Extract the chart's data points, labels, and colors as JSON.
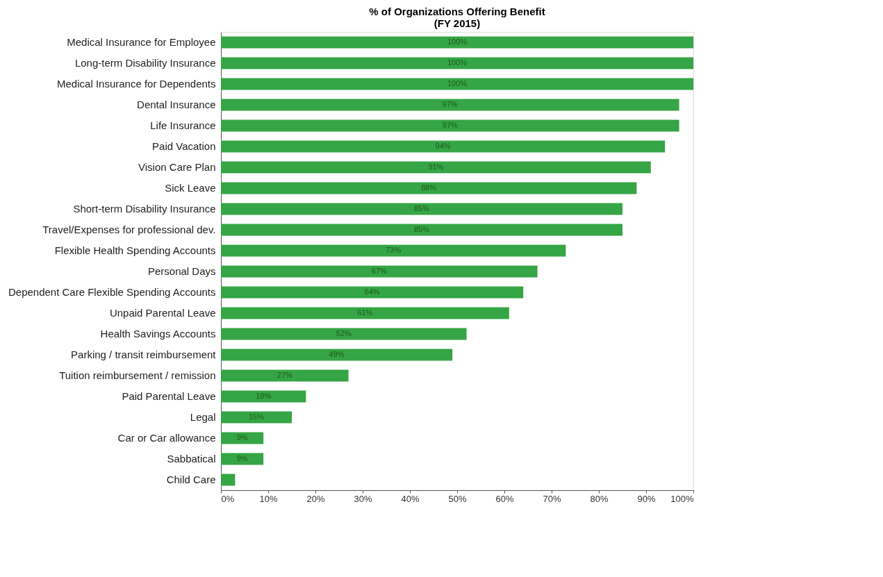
{
  "chart_data": {
    "type": "bar",
    "orientation": "horizontal",
    "title": "% of Organizations Offering Benefit\n(FY 2015)",
    "categories": [
      "Medical Insurance for Employee",
      "Long-term Disability Insurance",
      "Medical Insurance for Dependents",
      "Dental Insurance",
      "Life Insurance",
      "Paid Vacation",
      "Vision Care Plan",
      "Sick Leave",
      "Short-term Disability Insurance",
      "Travel/Expenses for professional dev.",
      "Flexible Health Spending Accounts",
      "Personal Days",
      "Dependent Care Flexible Spending Accounts",
      "Unpaid Parental Leave",
      "Health Savings Accounts",
      "Parking / transit reimbursement",
      "Tuition reimbursement / remission",
      "Paid Parental Leave",
      "Legal",
      "Car or Car allowance",
      "Sabbatical",
      "Child Care"
    ],
    "values": [
      100,
      100,
      100,
      97,
      97,
      94,
      91,
      88,
      85,
      85,
      73,
      67,
      64,
      61,
      52,
      49,
      27,
      18,
      15,
      9,
      9,
      3
    ],
    "value_labels": [
      "100%",
      "100%",
      "100%",
      "97%",
      "97%",
      "94%",
      "91%",
      "88%",
      "85%",
      "85%",
      "73%",
      "67%",
      "64%",
      "61%",
      "52%",
      "49%",
      "27%",
      "18%",
      "15%",
      "9%",
      "9%",
      null
    ],
    "color": "#35a545",
    "xlim": [
      0,
      100
    ],
    "xticks": [
      {
        "value": 0,
        "label": "0%"
      },
      {
        "value": 10,
        "label": "10%"
      },
      {
        "value": 20,
        "label": "20%"
      },
      {
        "value": 30,
        "label": "30%"
      },
      {
        "value": 40,
        "label": "40%"
      },
      {
        "value": 50,
        "label": "50%"
      },
      {
        "value": 60,
        "label": "60%"
      },
      {
        "value": 70,
        "label": "70%"
      },
      {
        "value": 80,
        "label": "80%"
      },
      {
        "value": 90,
        "label": "90%"
      },
      {
        "value": 100,
        "label": "100%"
      }
    ],
    "grid": false
  }
}
